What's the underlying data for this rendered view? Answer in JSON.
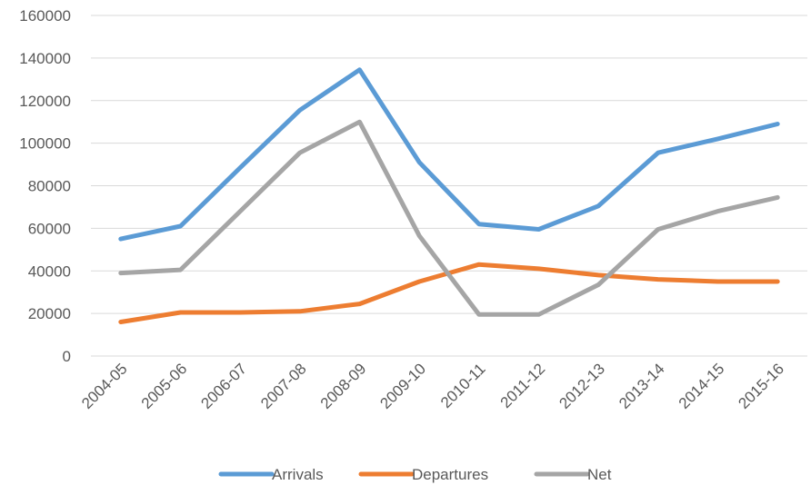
{
  "chart_data": {
    "type": "line",
    "categories": [
      "2004-05",
      "2005-06",
      "2006-07",
      "2007-08",
      "2008-09",
      "2009-10",
      "2010-11",
      "2011-12",
      "2012-13",
      "2013-14",
      "2014-15",
      "2015-16"
    ],
    "series": [
      {
        "name": "Arrivals",
        "color": "#5b9bd5",
        "values": [
          55000,
          61000,
          88500,
          115500,
          134500,
          91000,
          62000,
          59500,
          70500,
          95500,
          102000,
          109000
        ]
      },
      {
        "name": "Departures",
        "color": "#ed7d31",
        "values": [
          16000,
          20500,
          20500,
          21000,
          24500,
          35000,
          43000,
          41000,
          38000,
          36000,
          35000,
          35000
        ]
      },
      {
        "name": "Net",
        "color": "#a5a5a5",
        "values": [
          39000,
          40500,
          68000,
          95500,
          110000,
          56500,
          19500,
          19500,
          33500,
          59500,
          68000,
          74500
        ]
      }
    ],
    "yticks": [
      "0",
      "20000",
      "40000",
      "60000",
      "80000",
      "100000",
      "120000",
      "140000",
      "160000"
    ],
    "ylim": [
      0,
      160000
    ],
    "grid": true,
    "legend": "bottom"
  }
}
